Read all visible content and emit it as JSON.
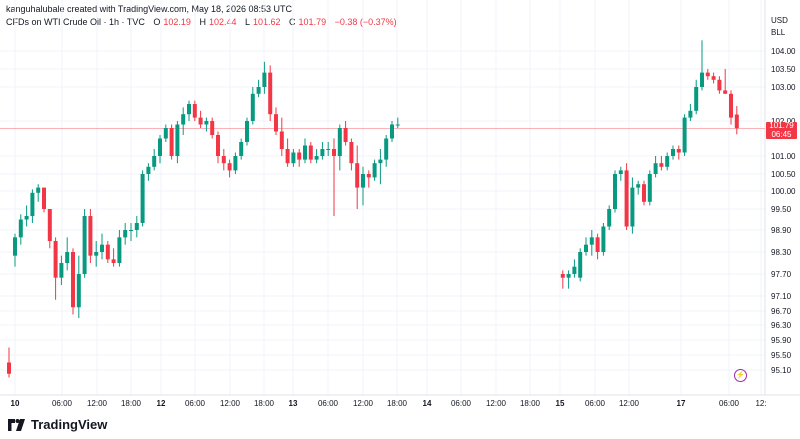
{
  "header": {
    "credit": "kanguhalubale created with TradingView.com, May 18, 2026 08:53 UTC",
    "symbol": "CFDs on WTI Crude Oil · 1h · TVC",
    "ohlc": {
      "o_label": "O",
      "o": "102.19",
      "h_label": "H",
      "h": "102.44",
      "l_label": "L",
      "l": "101.62",
      "c_label": "C",
      "c": "101.79",
      "change": "−0.38 (−0.37%)"
    }
  },
  "axis": {
    "currency": "USD",
    "unit": "BLL",
    "price_ticks": [
      "104.00",
      "103.50",
      "103.00",
      "102.00",
      "101.00",
      "100.50",
      "100.00",
      "99.50",
      "98.90",
      "98.30",
      "97.70",
      "97.10",
      "96.70",
      "96.30",
      "95.90",
      "95.50",
      "95.10"
    ],
    "time_ticks": [
      "10",
      "06:00",
      "12:00",
      "18:00",
      "12",
      "06:00",
      "12:00",
      "18:00",
      "13",
      "06:00",
      "12:00",
      "18:00",
      "14",
      "06:00",
      "12:00",
      "18:00",
      "15",
      "06:00",
      "12:00",
      "17",
      "06:00",
      "12:"
    ],
    "bold_time_ticks": [
      "10",
      "12",
      "13",
      "14",
      "15",
      "17"
    ]
  },
  "current_price": {
    "price": "101.79",
    "countdown": "06:45",
    "color": "#f23645"
  },
  "colors": {
    "up": "#089981",
    "down": "#f23645",
    "grid": "#f0f3fa",
    "text": "#131722"
  },
  "brand": {
    "name": "TradingView"
  },
  "chart_data": {
    "type": "candlestick",
    "title": "CFDs on WTI Crude Oil · 1h · TVC",
    "xlabel": "",
    "ylabel": "",
    "scale": "piecewise (as printed tick labels)",
    "grid": true,
    "candles": [
      {
        "o": 95.3,
        "h": 95.7,
        "l": 94.9,
        "c": 95.0
      },
      {
        "o": 98.2,
        "h": 98.8,
        "l": 97.9,
        "c": 98.7
      },
      {
        "o": 98.7,
        "h": 99.35,
        "l": 98.5,
        "c": 99.2
      },
      {
        "o": 99.2,
        "h": 99.6,
        "l": 99.0,
        "c": 99.3
      },
      {
        "o": 99.3,
        "h": 100.05,
        "l": 99.1,
        "c": 99.95
      },
      {
        "o": 99.95,
        "h": 100.2,
        "l": 99.7,
        "c": 100.1
      },
      {
        "o": 100.1,
        "h": 100.1,
        "l": 99.4,
        "c": 99.5
      },
      {
        "o": 99.5,
        "h": 99.5,
        "l": 98.4,
        "c": 98.6
      },
      {
        "o": 98.6,
        "h": 98.7,
        "l": 97.0,
        "c": 97.6
      },
      {
        "o": 97.6,
        "h": 98.2,
        "l": 97.4,
        "c": 98.0
      },
      {
        "o": 98.0,
        "h": 98.7,
        "l": 97.8,
        "c": 98.3
      },
      {
        "o": 98.3,
        "h": 98.4,
        "l": 96.6,
        "c": 96.8
      },
      {
        "o": 96.8,
        "h": 98.2,
        "l": 96.5,
        "c": 97.7
      },
      {
        "o": 97.7,
        "h": 99.5,
        "l": 97.6,
        "c": 99.3
      },
      {
        "o": 99.3,
        "h": 99.5,
        "l": 98.0,
        "c": 98.2
      },
      {
        "o": 98.2,
        "h": 98.6,
        "l": 97.9,
        "c": 98.3
      },
      {
        "o": 98.3,
        "h": 98.8,
        "l": 98.1,
        "c": 98.5
      },
      {
        "o": 98.5,
        "h": 98.6,
        "l": 98.0,
        "c": 98.1
      },
      {
        "o": 98.1,
        "h": 98.4,
        "l": 97.9,
        "c": 98.0
      },
      {
        "o": 98.0,
        "h": 98.9,
        "l": 97.9,
        "c": 98.7
      },
      {
        "o": 98.7,
        "h": 99.1,
        "l": 98.5,
        "c": 98.9
      },
      {
        "o": 98.9,
        "h": 99.1,
        "l": 98.6,
        "c": 98.9
      },
      {
        "o": 98.9,
        "h": 99.3,
        "l": 98.7,
        "c": 99.1
      },
      {
        "o": 99.1,
        "h": 100.6,
        "l": 99.0,
        "c": 100.5
      },
      {
        "o": 100.5,
        "h": 100.8,
        "l": 100.3,
        "c": 100.7
      },
      {
        "o": 100.7,
        "h": 101.2,
        "l": 100.6,
        "c": 101.0
      },
      {
        "o": 101.0,
        "h": 101.6,
        "l": 100.8,
        "c": 101.5
      },
      {
        "o": 101.5,
        "h": 101.9,
        "l": 101.4,
        "c": 101.8
      },
      {
        "o": 101.8,
        "h": 101.9,
        "l": 100.9,
        "c": 101.0
      },
      {
        "o": 101.0,
        "h": 102.0,
        "l": 100.8,
        "c": 101.9
      },
      {
        "o": 101.9,
        "h": 102.4,
        "l": 101.6,
        "c": 102.2
      },
      {
        "o": 102.2,
        "h": 102.6,
        "l": 102.0,
        "c": 102.5
      },
      {
        "o": 102.5,
        "h": 102.6,
        "l": 102.0,
        "c": 102.1
      },
      {
        "o": 102.1,
        "h": 102.3,
        "l": 101.8,
        "c": 101.9
      },
      {
        "o": 101.9,
        "h": 102.1,
        "l": 101.7,
        "c": 102.0
      },
      {
        "o": 102.0,
        "h": 102.1,
        "l": 101.5,
        "c": 101.6
      },
      {
        "o": 101.6,
        "h": 101.7,
        "l": 100.8,
        "c": 101.0
      },
      {
        "o": 101.0,
        "h": 101.2,
        "l": 100.6,
        "c": 100.8
      },
      {
        "o": 100.8,
        "h": 100.9,
        "l": 100.4,
        "c": 100.6
      },
      {
        "o": 100.6,
        "h": 101.1,
        "l": 100.5,
        "c": 101.0
      },
      {
        "o": 101.0,
        "h": 101.5,
        "l": 100.9,
        "c": 101.4
      },
      {
        "o": 101.4,
        "h": 102.1,
        "l": 101.3,
        "c": 102.0
      },
      {
        "o": 102.0,
        "h": 103.0,
        "l": 101.9,
        "c": 102.8
      },
      {
        "o": 102.8,
        "h": 103.2,
        "l": 102.7,
        "c": 103.0
      },
      {
        "o": 103.0,
        "h": 103.7,
        "l": 102.8,
        "c": 103.4
      },
      {
        "o": 103.4,
        "h": 103.6,
        "l": 102.0,
        "c": 102.2
      },
      {
        "o": 102.2,
        "h": 102.4,
        "l": 101.6,
        "c": 101.7
      },
      {
        "o": 101.7,
        "h": 102.1,
        "l": 101.0,
        "c": 101.2
      },
      {
        "o": 101.2,
        "h": 101.5,
        "l": 100.7,
        "c": 100.8
      },
      {
        "o": 100.8,
        "h": 101.2,
        "l": 100.7,
        "c": 101.1
      },
      {
        "o": 101.1,
        "h": 101.2,
        "l": 100.7,
        "c": 100.9
      },
      {
        "o": 100.9,
        "h": 101.5,
        "l": 100.8,
        "c": 101.3
      },
      {
        "o": 101.3,
        "h": 101.4,
        "l": 100.8,
        "c": 100.9
      },
      {
        "o": 100.9,
        "h": 101.2,
        "l": 100.8,
        "c": 101.0
      },
      {
        "o": 101.0,
        "h": 101.4,
        "l": 100.9,
        "c": 101.2
      },
      {
        "o": 101.2,
        "h": 101.4,
        "l": 101.0,
        "c": 101.2
      },
      {
        "o": 101.2,
        "h": 101.5,
        "l": 99.3,
        "c": 101.0
      },
      {
        "o": 101.0,
        "h": 101.9,
        "l": 100.6,
        "c": 101.8
      },
      {
        "o": 101.8,
        "h": 102.0,
        "l": 101.3,
        "c": 101.4
      },
      {
        "o": 101.4,
        "h": 101.5,
        "l": 100.6,
        "c": 100.8
      },
      {
        "o": 100.8,
        "h": 101.3,
        "l": 99.5,
        "c": 100.1
      },
      {
        "o": 100.1,
        "h": 100.7,
        "l": 99.6,
        "c": 100.5
      },
      {
        "o": 100.5,
        "h": 100.6,
        "l": 100.1,
        "c": 100.4
      },
      {
        "o": 100.4,
        "h": 100.9,
        "l": 100.3,
        "c": 100.8
      },
      {
        "o": 100.8,
        "h": 101.2,
        "l": 100.2,
        "c": 100.9
      },
      {
        "o": 100.9,
        "h": 101.6,
        "l": 100.7,
        "c": 101.5
      },
      {
        "o": 101.5,
        "h": 102.0,
        "l": 101.4,
        "c": 101.9
      },
      {
        "o": 101.9,
        "h": 102.1,
        "l": 101.8,
        "c": 101.9
      },
      {
        "o": 97.7,
        "h": 97.8,
        "l": 97.3,
        "c": 97.6
      },
      {
        "o": 97.6,
        "h": 97.8,
        "l": 97.3,
        "c": 97.7
      },
      {
        "o": 97.7,
        "h": 98.1,
        "l": 97.6,
        "c": 97.9
      },
      {
        "o": 97.6,
        "h": 98.4,
        "l": 97.5,
        "c": 98.3
      },
      {
        "o": 98.3,
        "h": 98.7,
        "l": 98.2,
        "c": 98.5
      },
      {
        "o": 98.5,
        "h": 98.9,
        "l": 98.2,
        "c": 98.7
      },
      {
        "o": 98.7,
        "h": 98.8,
        "l": 98.1,
        "c": 98.3
      },
      {
        "o": 98.3,
        "h": 99.1,
        "l": 98.2,
        "c": 99.0
      },
      {
        "o": 99.0,
        "h": 99.6,
        "l": 98.9,
        "c": 99.5
      },
      {
        "o": 99.5,
        "h": 100.6,
        "l": 99.4,
        "c": 100.5
      },
      {
        "o": 100.5,
        "h": 100.7,
        "l": 100.3,
        "c": 100.6
      },
      {
        "o": 100.6,
        "h": 100.8,
        "l": 98.9,
        "c": 99.0
      },
      {
        "o": 99.0,
        "h": 100.4,
        "l": 98.8,
        "c": 100.1
      },
      {
        "o": 100.1,
        "h": 100.3,
        "l": 99.9,
        "c": 100.2
      },
      {
        "o": 100.2,
        "h": 100.3,
        "l": 99.6,
        "c": 99.7
      },
      {
        "o": 99.7,
        "h": 100.6,
        "l": 99.6,
        "c": 100.5
      },
      {
        "o": 100.5,
        "h": 101.0,
        "l": 100.4,
        "c": 100.8
      },
      {
        "o": 100.8,
        "h": 101.0,
        "l": 100.6,
        "c": 100.7
      },
      {
        "o": 100.7,
        "h": 101.1,
        "l": 100.6,
        "c": 101.0
      },
      {
        "o": 101.0,
        "h": 101.3,
        "l": 100.9,
        "c": 101.2
      },
      {
        "o": 101.2,
        "h": 101.3,
        "l": 100.9,
        "c": 101.1
      },
      {
        "o": 101.1,
        "h": 102.2,
        "l": 101.0,
        "c": 102.1
      },
      {
        "o": 102.1,
        "h": 102.5,
        "l": 102.0,
        "c": 102.3
      },
      {
        "o": 102.3,
        "h": 103.2,
        "l": 102.2,
        "c": 103.0
      },
      {
        "o": 103.0,
        "h": 104.3,
        "l": 102.9,
        "c": 103.4
      },
      {
        "o": 103.4,
        "h": 103.5,
        "l": 103.2,
        "c": 103.3
      },
      {
        "o": 103.3,
        "h": 103.4,
        "l": 103.1,
        "c": 103.2
      },
      {
        "o": 103.2,
        "h": 103.3,
        "l": 102.8,
        "c": 102.9
      },
      {
        "o": 102.9,
        "h": 103.5,
        "l": 102.8,
        "c": 102.8
      },
      {
        "o": 102.8,
        "h": 102.9,
        "l": 101.9,
        "c": 102.1
      },
      {
        "o": 102.19,
        "h": 102.44,
        "l": 101.62,
        "c": 101.79
      }
    ],
    "gaps_after_index": [
      0,
      67
    ],
    "last_price": 101.79
  }
}
